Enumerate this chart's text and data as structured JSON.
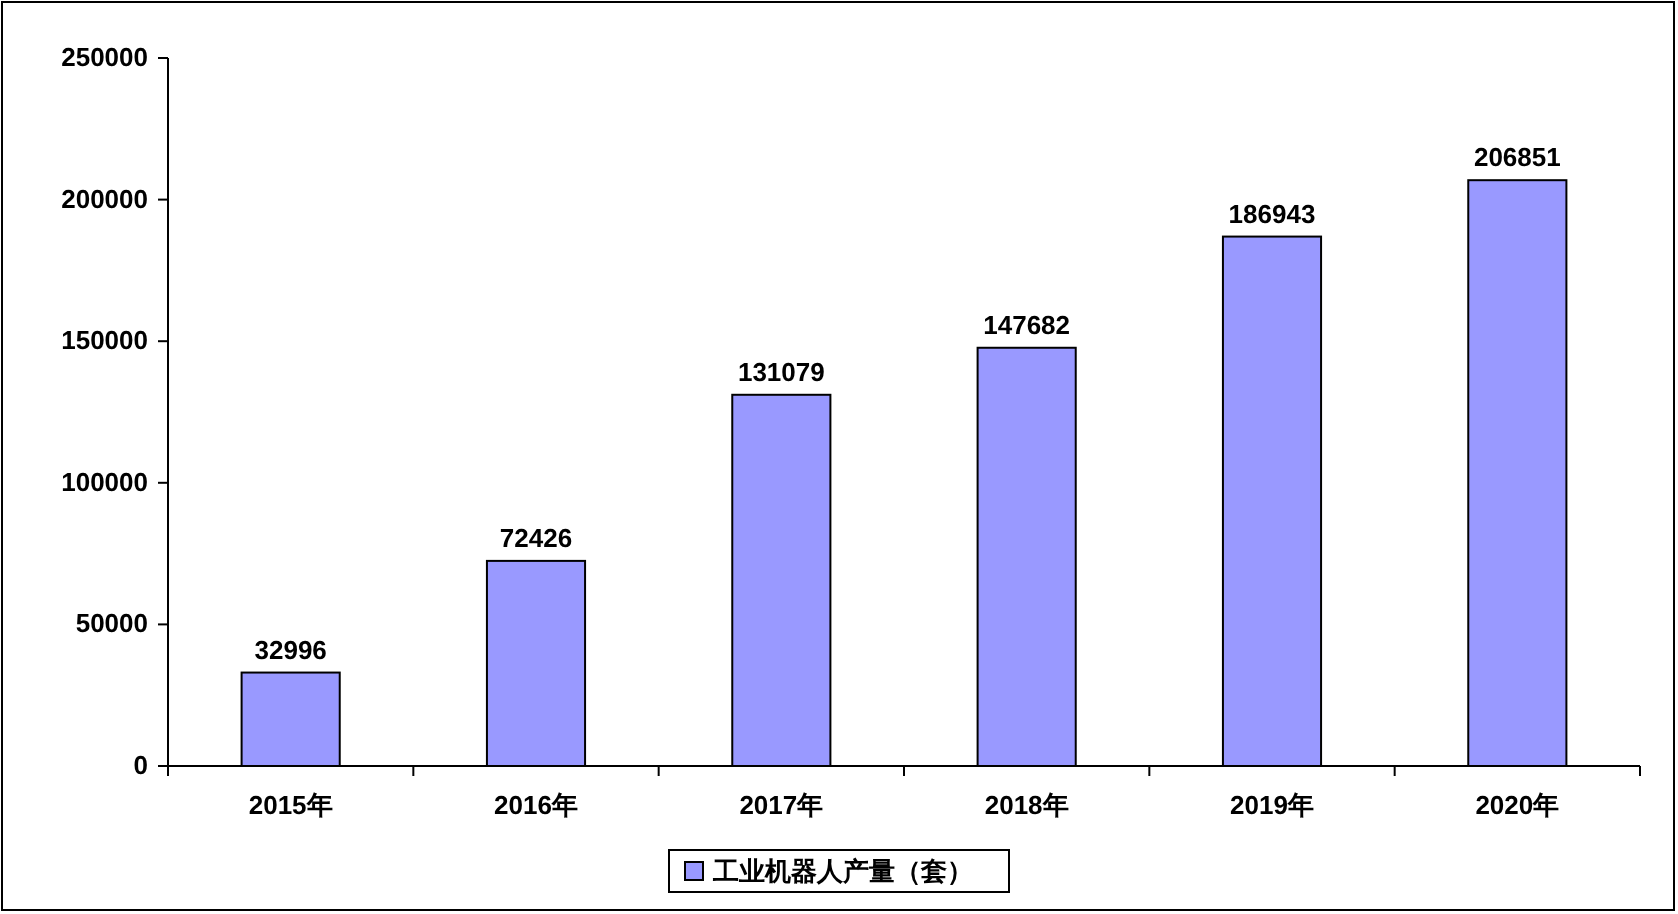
{
  "chart_data": {
    "type": "bar",
    "categories": [
      "2015年",
      "2016年",
      "2017年",
      "2018年",
      "2019年",
      "2020年"
    ],
    "series": [
      {
        "name": "工业机器人产量（套）",
        "color": "#9999ff",
        "values": [
          32996,
          72426,
          131079,
          147682,
          186943,
          206851
        ]
      }
    ],
    "ylim": [
      0,
      250000
    ],
    "yticks": [
      0,
      50000,
      100000,
      150000,
      200000,
      250000
    ],
    "data_labels": true,
    "grid": false,
    "legend": "bottom"
  }
}
